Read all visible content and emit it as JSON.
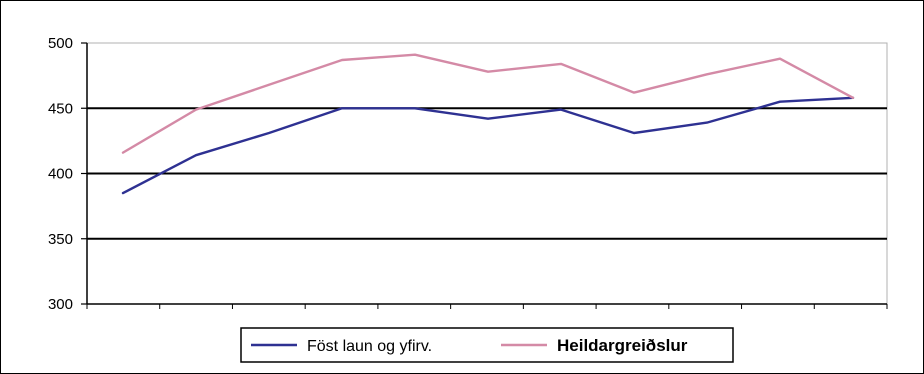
{
  "chart_data": {
    "type": "line",
    "title": "",
    "xlabel": "",
    "ylabel": "",
    "ylim": [
      300,
      500
    ],
    "yticks": [
      "500",
      "450",
      "400",
      "350",
      "300"
    ],
    "grid": "horizontal major lines at 350, 400, 450",
    "legend_placement": "bottom",
    "x": [
      1,
      2,
      3,
      4,
      5,
      6,
      7,
      8,
      9,
      10,
      11
    ],
    "series": [
      {
        "name": "Föst laun og yfirv.",
        "color": "#2e3192",
        "values": [
          385,
          414,
          431,
          450,
          450,
          442,
          449,
          431,
          439,
          455,
          458
        ]
      },
      {
        "name": "Heildargreiðslur",
        "color": "#d48aa6",
        "values": [
          416,
          449,
          468,
          487,
          491,
          478,
          484,
          462,
          476,
          488,
          458
        ]
      }
    ]
  }
}
